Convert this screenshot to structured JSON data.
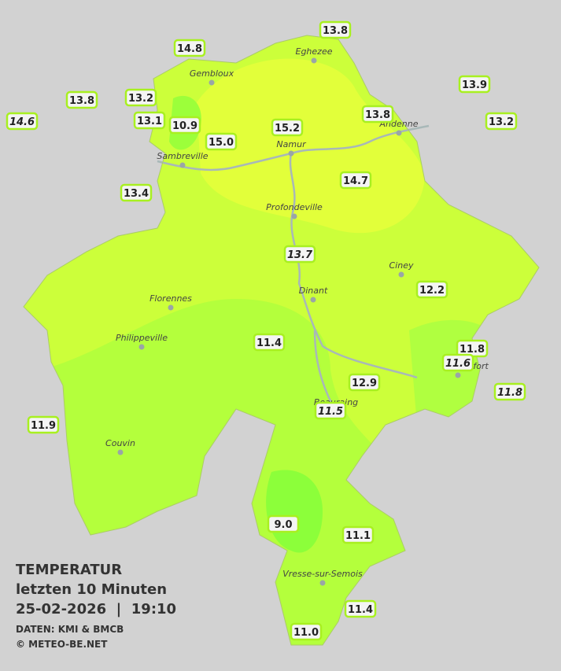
{
  "title": "TEMPERATUR",
  "subtitle": "letzten 10 Minuten",
  "timestamp": "25-02-2026  |  19:10",
  "source": "DATEN: KMI & BMCB",
  "copyright": "© METEO-BE.NET",
  "cities": [
    "Eghezee",
    "Gembloux",
    "Andenne",
    "Namur",
    "Sambreville",
    "Profondeville",
    "Ciney",
    "Dinant",
    "Florennes",
    "Philippeville",
    "Rochefort",
    "Beauraing",
    "Couvin",
    "Vresse-sur-Semois"
  ],
  "stations": [
    {
      "label": "14.8",
      "italic": false
    },
    {
      "label": "13.8",
      "italic": false
    },
    {
      "label": "13.9",
      "italic": false
    },
    {
      "label": "13.8",
      "italic": false
    },
    {
      "label": "13.2",
      "italic": false
    },
    {
      "label": "14.6",
      "italic": true
    },
    {
      "label": "13.1",
      "italic": false
    },
    {
      "label": "10.9",
      "italic": false
    },
    {
      "label": "15.0",
      "italic": false
    },
    {
      "label": "15.2",
      "italic": false
    },
    {
      "label": "13.8",
      "italic": false
    },
    {
      "label": "13.2",
      "italic": false
    },
    {
      "label": "14.7",
      "italic": false
    },
    {
      "label": "13.4",
      "italic": false
    },
    {
      "label": "13.7",
      "italic": true
    },
    {
      "label": "12.2",
      "italic": false
    },
    {
      "label": "11.4",
      "italic": false
    },
    {
      "label": "11.8",
      "italic": false
    },
    {
      "label": "11.6",
      "italic": true
    },
    {
      "label": "11.8",
      "italic": true
    },
    {
      "label": "12.9",
      "italic": false
    },
    {
      "label": "11.5",
      "italic": true
    },
    {
      "label": "11.9",
      "italic": false
    },
    {
      "label": "9.0",
      "italic": false
    },
    {
      "label": "11.1",
      "italic": false
    },
    {
      "label": "11.4",
      "italic": false
    },
    {
      "label": "11.0",
      "italic": false
    }
  ]
}
